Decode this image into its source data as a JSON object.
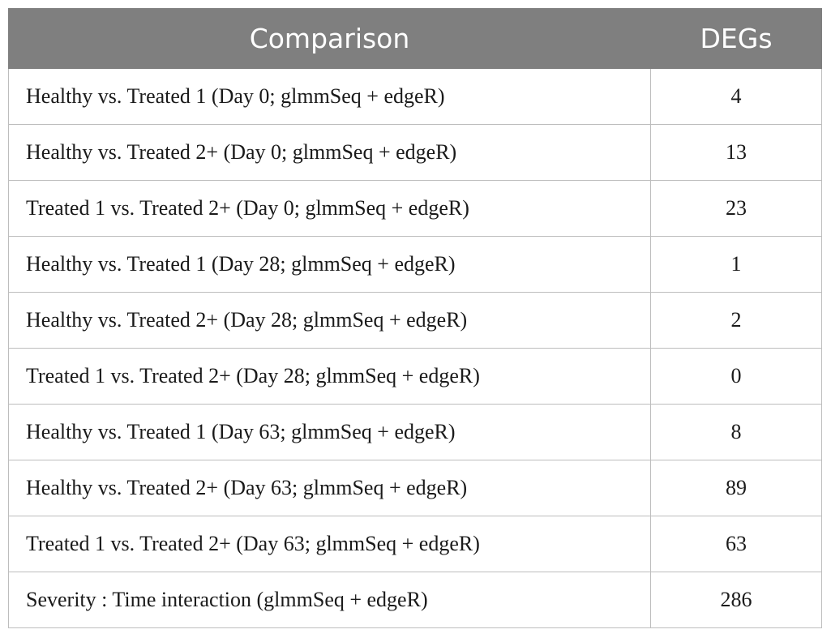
{
  "table": {
    "headers": {
      "comparison": "Comparison",
      "degs": "DEGs"
    },
    "rows": [
      {
        "comparison": "Healthy vs. Treated 1 (Day 0; glmmSeq + edgeR)",
        "degs": "4"
      },
      {
        "comparison": "Healthy vs. Treated 2+ (Day 0; glmmSeq + edgeR)",
        "degs": "13"
      },
      {
        "comparison": "Treated 1 vs. Treated 2+ (Day 0; glmmSeq + edgeR)",
        "degs": "23"
      },
      {
        "comparison": "Healthy vs. Treated 1 (Day 28; glmmSeq + edgeR)",
        "degs": "1"
      },
      {
        "comparison": "Healthy vs. Treated 2+ (Day 28; glmmSeq + edgeR)",
        "degs": "2"
      },
      {
        "comparison": "Treated 1 vs. Treated 2+ (Day 28; glmmSeq + edgeR)",
        "degs": "0"
      },
      {
        "comparison": "Healthy vs. Treated 1 (Day 63; glmmSeq + edgeR)",
        "degs": "8"
      },
      {
        "comparison": "Healthy vs. Treated 2+ (Day 63; glmmSeq + edgeR)",
        "degs": "89"
      },
      {
        "comparison": "Treated 1 vs. Treated 2+ (Day 63; glmmSeq + edgeR)",
        "degs": "63"
      },
      {
        "comparison": "Severity : Time interaction (glmmSeq + edgeR)",
        "degs": "286"
      }
    ]
  },
  "colors": {
    "header_background": "#7f7f7f",
    "header_text": "#ffffff",
    "grid_lines": "#bdbdbd"
  }
}
